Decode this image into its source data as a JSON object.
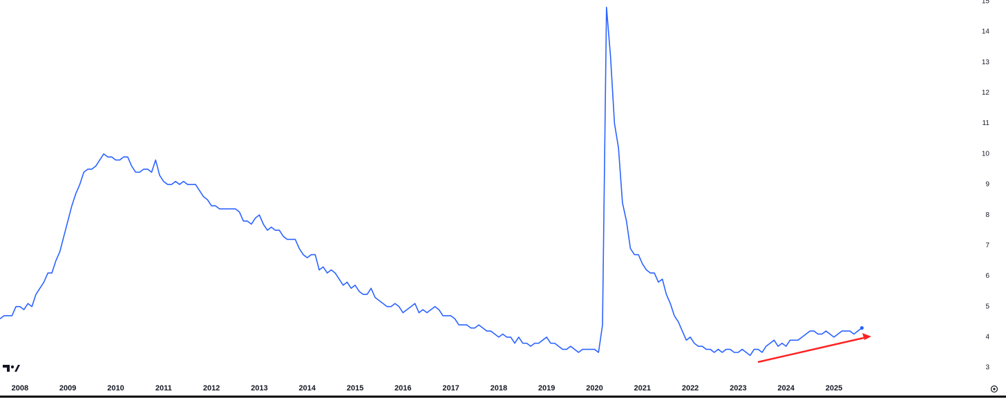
{
  "chart_data": {
    "type": "line",
    "color": "#2962ff",
    "categories": [
      null,
      null,
      null,
      null,
      null,
      "2008",
      null,
      null,
      null,
      null,
      null,
      null,
      null,
      null,
      null,
      null,
      null,
      "2009",
      null,
      null,
      null,
      null,
      null,
      null,
      null,
      null,
      null,
      null,
      null,
      "2010",
      null,
      null,
      null,
      null,
      null,
      null,
      null,
      null,
      null,
      null,
      null,
      "2011",
      null,
      null,
      null,
      null,
      null,
      null,
      null,
      null,
      null,
      null,
      null,
      "2012",
      null,
      null,
      null,
      null,
      null,
      null,
      null,
      null,
      null,
      null,
      null,
      "2013",
      null,
      null,
      null,
      null,
      null,
      null,
      null,
      null,
      null,
      null,
      null,
      "2014",
      null,
      null,
      null,
      null,
      null,
      null,
      null,
      null,
      null,
      null,
      null,
      "2015",
      null,
      null,
      null,
      null,
      null,
      null,
      null,
      null,
      null,
      null,
      null,
      "2016",
      null,
      null,
      null,
      null,
      null,
      null,
      null,
      null,
      null,
      null,
      null,
      "2017",
      null,
      null,
      null,
      null,
      null,
      null,
      null,
      null,
      null,
      null,
      null,
      "2018",
      null,
      null,
      null,
      null,
      null,
      null,
      null,
      null,
      null,
      null,
      null,
      "2019",
      null,
      null,
      null,
      null,
      null,
      null,
      null,
      null,
      null,
      null,
      null,
      "2020",
      null,
      null,
      null,
      null,
      null,
      null,
      null,
      null,
      null,
      null,
      null,
      "2021",
      null,
      null,
      null,
      null,
      null,
      null,
      null,
      null,
      null,
      null,
      null,
      "2022",
      null,
      null,
      null,
      null,
      null,
      null,
      null,
      null,
      null,
      null,
      null,
      "2023",
      null,
      null,
      null,
      null,
      null,
      null,
      null,
      null,
      null,
      null,
      null,
      "2024",
      null,
      null,
      null,
      null,
      null,
      null,
      null,
      null,
      null,
      null,
      null,
      "2025",
      null,
      null,
      null,
      null,
      null,
      null,
      null
    ],
    "values": [
      4.6,
      4.7,
      4.7,
      4.7,
      5.0,
      5.0,
      4.9,
      5.1,
      5.0,
      5.4,
      5.6,
      5.8,
      6.1,
      6.1,
      6.5,
      6.8,
      7.3,
      7.8,
      8.3,
      8.7,
      9.0,
      9.4,
      9.5,
      9.5,
      9.6,
      9.8,
      10.0,
      9.9,
      9.9,
      9.8,
      9.8,
      9.9,
      9.9,
      9.6,
      9.4,
      9.4,
      9.5,
      9.5,
      9.4,
      9.8,
      9.3,
      9.1,
      9.0,
      9.0,
      9.1,
      9.0,
      9.1,
      9.0,
      9.0,
      9.0,
      8.8,
      8.6,
      8.5,
      8.3,
      8.3,
      8.2,
      8.2,
      8.2,
      8.2,
      8.2,
      8.1,
      7.8,
      7.8,
      7.7,
      7.9,
      8.0,
      7.7,
      7.5,
      7.6,
      7.5,
      7.5,
      7.3,
      7.2,
      7.2,
      7.2,
      6.9,
      6.7,
      6.6,
      6.7,
      6.7,
      6.2,
      6.3,
      6.1,
      6.2,
      6.1,
      5.9,
      5.7,
      5.8,
      5.6,
      5.7,
      5.5,
      5.4,
      5.4,
      5.6,
      5.3,
      5.2,
      5.1,
      5.0,
      5.0,
      5.1,
      5.0,
      4.8,
      4.9,
      5.0,
      5.1,
      4.8,
      4.9,
      4.8,
      4.9,
      5.0,
      4.9,
      4.7,
      4.7,
      4.7,
      4.6,
      4.4,
      4.4,
      4.4,
      4.3,
      4.3,
      4.4,
      4.3,
      4.2,
      4.2,
      4.1,
      4.0,
      4.1,
      4.0,
      4.0,
      3.8,
      4.0,
      3.8,
      3.8,
      3.7,
      3.8,
      3.8,
      3.9,
      4.0,
      3.8,
      3.8,
      3.7,
      3.6,
      3.6,
      3.7,
      3.6,
      3.5,
      3.6,
      3.6,
      3.6,
      3.6,
      3.5,
      4.4,
      14.8,
      13.2,
      11.0,
      10.2,
      8.4,
      7.8,
      6.9,
      6.7,
      6.7,
      6.4,
      6.2,
      6.1,
      6.1,
      5.8,
      5.9,
      5.4,
      5.1,
      4.7,
      4.5,
      4.2,
      3.9,
      4.0,
      3.8,
      3.7,
      3.7,
      3.6,
      3.6,
      3.5,
      3.6,
      3.5,
      3.6,
      3.6,
      3.5,
      3.5,
      3.6,
      3.5,
      3.4,
      3.6,
      3.6,
      3.5,
      3.7,
      3.8,
      3.9,
      3.7,
      3.8,
      3.7,
      3.9,
      3.9,
      3.9,
      4.0,
      4.1,
      4.2,
      4.2,
      4.1,
      4.1,
      4.2,
      4.1,
      4.0,
      4.1,
      4.2,
      4.2,
      4.2,
      4.1,
      4.2,
      4.3
    ],
    "ylim": [
      2.64,
      15.04
    ],
    "yticks": [
      3,
      4,
      5,
      6,
      7,
      8,
      9,
      10,
      11,
      12,
      13,
      14,
      15
    ]
  }
}
